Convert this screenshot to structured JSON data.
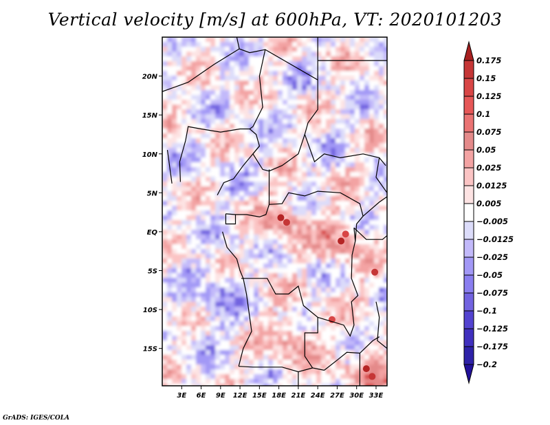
{
  "title": "Vertical velocity [m/s] at 600hPa, VT: 2020101203",
  "credit": "GrADS: IGES/COLA",
  "chart_data": {
    "type": "heatmap",
    "title": "Vertical velocity [m/s] at 600hPa, VT: 2020101203",
    "variable": "Vertical velocity",
    "units": "m/s",
    "level": "600hPa",
    "valid_time": "2020101203",
    "xlabel": "",
    "ylabel": "",
    "x_range_deg": [
      0,
      34.7
    ],
    "y_range_deg": [
      -19.8,
      25
    ],
    "x_ticks": [
      {
        "value": 3,
        "label": "3E"
      },
      {
        "value": 6,
        "label": "6E"
      },
      {
        "value": 9,
        "label": "9E"
      },
      {
        "value": 12,
        "label": "12E"
      },
      {
        "value": 15,
        "label": "15E"
      },
      {
        "value": 18,
        "label": "18E"
      },
      {
        "value": 21,
        "label": "21E"
      },
      {
        "value": 24,
        "label": "24E"
      },
      {
        "value": 27,
        "label": "27E"
      },
      {
        "value": 30,
        "label": "30E"
      },
      {
        "value": 33,
        "label": "33E"
      }
    ],
    "y_ticks": [
      {
        "value": 20,
        "label": "20N"
      },
      {
        "value": 15,
        "label": "15N"
      },
      {
        "value": 10,
        "label": "10N"
      },
      {
        "value": 5,
        "label": "5N"
      },
      {
        "value": 0,
        "label": "EQ"
      },
      {
        "value": -5,
        "label": "5S"
      },
      {
        "value": -10,
        "label": "10S"
      },
      {
        "value": -15,
        "label": "15S"
      }
    ],
    "colorbar": {
      "levels": [
        "0.175",
        "0.15",
        "0.125",
        "0.1",
        "0.075",
        "0.05",
        "0.025",
        "0.0125",
        "0.005",
        "-0.005",
        "-0.0125",
        "-0.025",
        "-0.05",
        "-0.075",
        "-0.1",
        "-0.125",
        "-0.175",
        "-0.2"
      ],
      "colors": [
        "#b52525",
        "#c53636",
        "#d84646",
        "#e65757",
        "#ea7373",
        "#e48a8a",
        "#f3a3a3",
        "#fbc4c4",
        "#fde3e3",
        "#ffffff",
        "#dcdcfa",
        "#c2b9fa",
        "#a298f6",
        "#8a7ef0",
        "#7263e0",
        "#5343d0",
        "#4030be",
        "#2e22a8",
        "#22139a"
      ],
      "over_color": "#a82020",
      "under_color": "#22119a",
      "extend": "both",
      "orientation": "vertical",
      "placement": "right"
    },
    "features": [
      {
        "description": "strong upward motion (red) cluster",
        "lon": 18.5,
        "lat": 1.5
      },
      {
        "description": "strong upward motion (red) cluster",
        "lon": 27.5,
        "lat": -1.0
      },
      {
        "description": "strong upward motion (red) area",
        "lon": 31.5,
        "lat": -17.5
      },
      {
        "description": "widespread upward motion",
        "lon": 20,
        "lat": -14
      },
      {
        "description": "mixed noisy field over Gulf of Guinea",
        "lon": 5,
        "lat": 3
      },
      {
        "description": "downward motion (blue) band",
        "lon": 8,
        "lat": -8
      }
    ],
    "grid": false,
    "legend": "right"
  }
}
